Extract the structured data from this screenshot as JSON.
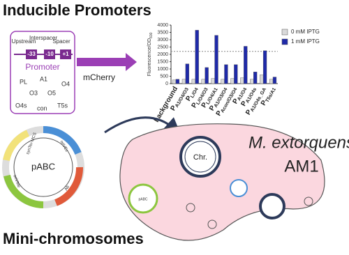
{
  "header": {
    "title": "Inducible Promoters"
  },
  "promoter": {
    "regions": [
      "Upstream",
      "Interspacer",
      "Spacer"
    ],
    "boxes": [
      "-33",
      "-10",
      "+1"
    ],
    "label": "Promoter",
    "parts": [
      "PL",
      "A1",
      "O4",
      "O3",
      "O5",
      "O4s",
      "con",
      "T5s"
    ]
  },
  "reporter": "mCherry",
  "chart_data": {
    "type": "bar",
    "y_label": "Fluorescence/OD",
    "y_label_sub": "600",
    "categories": [
      {
        "text": "background"
      },
      {
        "text": "P",
        "sub": "A1/O4/O3"
      },
      {
        "text": "P",
        "sub": "L/O4"
      },
      {
        "text": "P",
        "sub": "L/O4/O3"
      },
      {
        "text": "P",
        "sub": "L/O4/A1"
      },
      {
        "text": "P",
        "sub": "A1/O3/O4"
      },
      {
        "text": "P",
        "sub": "Acon/O3/O4"
      },
      {
        "text": "P",
        "sub": "A1/O4"
      },
      {
        "text": "P",
        "sub": "A1/O4s"
      },
      {
        "text": "P",
        "sub": "A1/O4s_GA"
      },
      {
        "text": "P",
        "sub": "T5s/A1"
      }
    ],
    "series": [
      {
        "name": "0 mM IPTG",
        "color": "#d9d9d9",
        "values": [
          250,
          300,
          300,
          300,
          350,
          300,
          350,
          400,
          300,
          600,
          300
        ]
      },
      {
        "name": "1 mM IPTG",
        "color": "#1f2aa8",
        "values": [
          300,
          1350,
          3650,
          1100,
          3300,
          1300,
          1300,
          2550,
          800,
          2250,
          450
        ]
      }
    ],
    "ylim": [
      0,
      4000
    ],
    "yticks": [
      0,
      500,
      1000,
      1500,
      2000,
      2500,
      3000,
      3500,
      4000
    ],
    "reference_line": 2200,
    "legend": "right"
  },
  "plasmid": {
    "name": "pABC",
    "features": [
      "synTer-MCS",
      "oriVEc",
      "Ab",
      "oriVMe"
    ]
  },
  "cell": {
    "organism": "M. extorquens",
    "strain": "AM1",
    "chromosome": "Chr.",
    "plasmid_label": "pABC"
  },
  "footer": {
    "title": "Mini-chromosomes"
  }
}
